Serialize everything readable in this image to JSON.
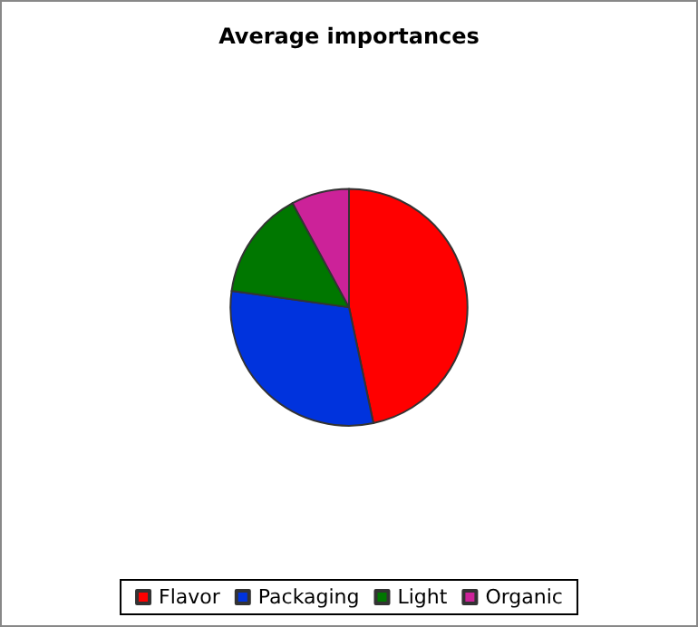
{
  "chart_data": {
    "type": "pie",
    "title": "Average importances",
    "categories": [
      "Flavor",
      "Packaging",
      "Light",
      "Organic"
    ],
    "values": [
      46.7,
      30.5,
      14.9,
      7.9
    ],
    "colors": [
      "#ff0000",
      "#0033dd",
      "#007700",
      "#cc2299"
    ],
    "legend": "bottom"
  }
}
